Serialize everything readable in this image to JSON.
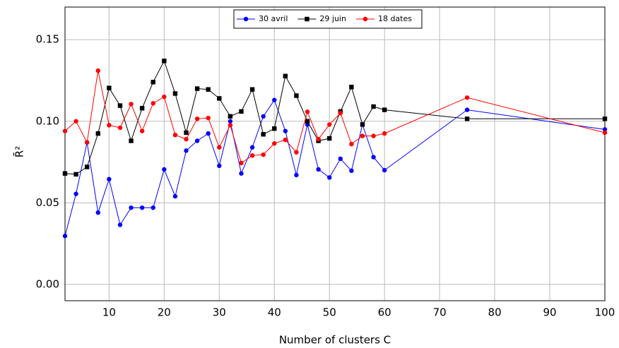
{
  "chart_data": {
    "type": "line",
    "xlabel": "Number of clusters C",
    "ylabel": "R̄²",
    "x": [
      2,
      4,
      6,
      8,
      10,
      12,
      14,
      16,
      18,
      20,
      22,
      24,
      26,
      28,
      30,
      32,
      34,
      36,
      38,
      40,
      42,
      44,
      46,
      48,
      50,
      52,
      54,
      56,
      58,
      60,
      75,
      100
    ],
    "series": [
      {
        "name": "30 avril",
        "color": "#0000ff",
        "marker": "circle",
        "values": [
          0.0297,
          0.0555,
          0.087,
          0.044,
          0.0645,
          0.0365,
          0.047,
          0.047,
          0.047,
          0.0705,
          0.054,
          0.082,
          0.088,
          0.0925,
          0.0727,
          0.1,
          0.068,
          0.084,
          0.103,
          0.113,
          0.094,
          0.067,
          0.098,
          0.0705,
          0.0655,
          0.077,
          0.0697,
          0.098,
          0.078,
          0.07,
          0.107,
          0.095
        ]
      },
      {
        "name": "29 juin",
        "color": "#000000",
        "marker": "square",
        "values": [
          0.068,
          0.0675,
          0.072,
          0.0925,
          0.1204,
          0.1096,
          0.088,
          0.108,
          0.124,
          0.137,
          0.117,
          0.093,
          0.12,
          0.1195,
          0.114,
          0.103,
          0.106,
          0.1195,
          0.092,
          0.0955,
          0.1277,
          0.1157,
          0.1,
          0.088,
          0.0895,
          0.106,
          0.121,
          0.098,
          0.109,
          0.107,
          0.1015,
          0.1015
        ]
      },
      {
        "name": "18 dates",
        "color": "#ff0000",
        "marker": "circle",
        "values": [
          0.094,
          0.1,
          0.087,
          0.131,
          0.0976,
          0.096,
          0.1105,
          0.094,
          0.111,
          0.115,
          0.0916,
          0.089,
          0.1015,
          0.102,
          0.084,
          0.0976,
          0.0744,
          0.079,
          0.0795,
          0.0864,
          0.0886,
          0.081,
          0.1058,
          0.089,
          0.098,
          0.105,
          0.086,
          0.091,
          0.091,
          0.0925,
          0.1145,
          0.093
        ]
      }
    ],
    "xlim": [
      2,
      100
    ],
    "xticks": [
      10,
      20,
      30,
      40,
      50,
      60,
      70,
      80,
      90,
      100
    ],
    "ylim": [
      -0.01,
      0.17
    ],
    "yticks": [
      {
        "value": 0,
        "label": "0.00"
      },
      0.05,
      {
        "value": 0.1,
        "label": "0.10"
      },
      {
        "value": 0.15,
        "label": "0.15"
      }
    ],
    "grid": true,
    "legend": "upper center"
  }
}
